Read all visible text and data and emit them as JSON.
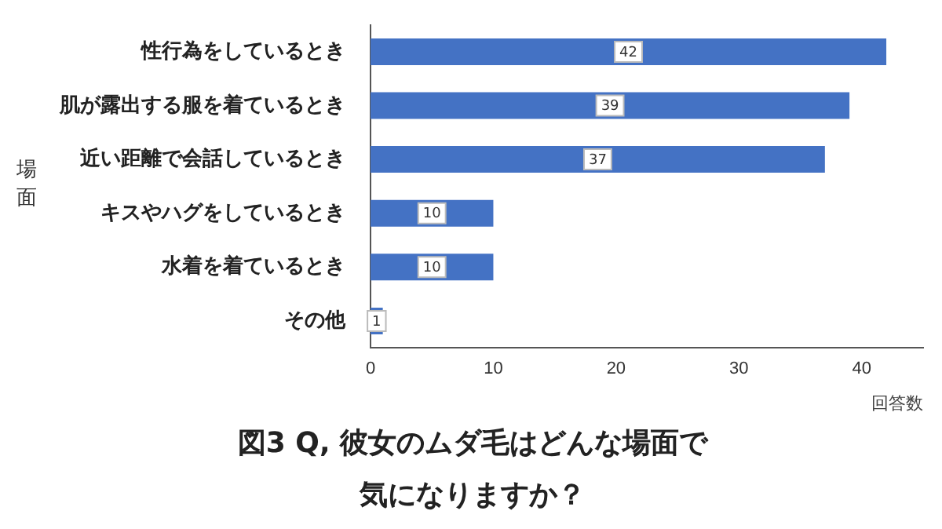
{
  "chart_data": {
    "type": "bar",
    "orientation": "horizontal",
    "title": "図3 Q, 彼女のムダ毛はどんな場面で気になりますか？",
    "xlabel": "回答数",
    "ylabel": "場面",
    "categories": [
      "性行為をしているとき",
      "肌が露出する服を着ているとき",
      "近い距離で会話しているとき",
      "キスやハグをしているとき",
      "水着を着ているとき",
      "その他"
    ],
    "values": [
      42,
      39,
      37,
      10,
      10,
      1
    ],
    "color": "#4472c4",
    "xlim": [
      0,
      45
    ],
    "xticks": [
      0,
      10,
      20,
      30,
      40
    ],
    "grid": false,
    "data_labels": true
  }
}
